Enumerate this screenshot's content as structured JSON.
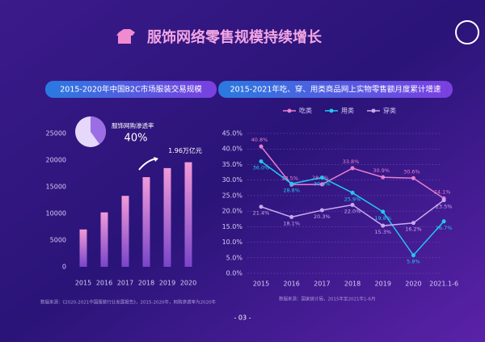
{
  "title": "服饰网络零售规模持续增长",
  "page_number": "- 03 -",
  "sources": [
    "数据来源：《2020-2021中国服装行业发展报告》，2015-2020年，网购渗透率为2020年",
    "数据来源：国家统计局，2015年至2021年1-6月"
  ],
  "chart_data": [
    {
      "type": "bar",
      "title": "2015-2020年中国B2C市场服装交易规模",
      "categories": [
        "2015",
        "2016",
        "2017",
        "2018",
        "2019",
        "2020"
      ],
      "values": [
        7000,
        10200,
        13300,
        16800,
        18500,
        19600
      ],
      "value_labels": [
        null,
        null,
        null,
        null,
        null,
        "1.96万亿元"
      ],
      "color": "#e987d6",
      "ylim": [
        0,
        25000
      ],
      "yticks": [
        0,
        5000,
        10000,
        15000,
        20000,
        25000
      ]
    },
    {
      "type": "pie",
      "title": "服饰网购渗透率",
      "values": [
        40
      ],
      "value_labels": [
        "40%"
      ],
      "color": "#9b6ee6"
    },
    {
      "type": "line",
      "title": "2015-2021年吃、穿、用类商品网上实物零售额月度累计增速",
      "categories": [
        "2015",
        "2016",
        "2017",
        "2018",
        "2019",
        "2020",
        "2021.1-6"
      ],
      "series": [
        {
          "name": "吃类",
          "color": "#e77fd0",
          "values": [
            40.8,
            28.5,
            28.6,
            33.8,
            30.9,
            30.6,
            24.1
          ],
          "value_labels": [
            "40.8%",
            "28.5%",
            "28.6%",
            "33.8%",
            "30.9%",
            "30.6%",
            "24.1%"
          ]
        },
        {
          "name": "用类",
          "color": "#22c8f0",
          "values": [
            36.0,
            28.8,
            30.8,
            25.9,
            19.8,
            5.8,
            16.7
          ],
          "value_labels": [
            "36.0%",
            "28.8%",
            "30.8%",
            "25.9%",
            "19.8%",
            "5.8%",
            "16.7%"
          ]
        },
        {
          "name": "穿类",
          "color": "#c9a8f0",
          "values": [
            21.4,
            18.1,
            20.3,
            22.0,
            15.3,
            16.2,
            23.5
          ],
          "value_labels": [
            "21.4%",
            "18.1%",
            "20.3%",
            "22.0%",
            "15.3%",
            "16.2%",
            "23.5%"
          ]
        }
      ],
      "ylim": [
        0,
        45
      ],
      "yticks": [
        {
          "value": 0,
          "label": "0.0%"
        },
        {
          "value": 5,
          "label": "5.0%"
        },
        {
          "value": 10,
          "label": "10.0%"
        },
        {
          "value": 15,
          "label": "15.0%"
        },
        {
          "value": 20,
          "label": "20.0%"
        },
        {
          "value": 25,
          "label": "25.0%"
        },
        {
          "value": 30,
          "label": "30.0%"
        },
        {
          "value": 35,
          "label": "35.0%"
        },
        {
          "value": 40,
          "label": "40.0%"
        },
        {
          "value": 45,
          "label": "45.0%"
        }
      ],
      "legend": "top"
    }
  ]
}
